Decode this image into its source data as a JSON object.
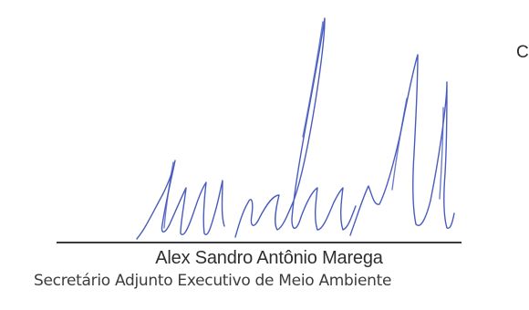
{
  "document": {
    "edge_text": "C",
    "signature_ink_color": "#3a4fb8",
    "signer_name": "Alex Sandro Antônio Marega",
    "signer_role": "Secretário Adjunto Executivo de Meio Ambiente"
  }
}
